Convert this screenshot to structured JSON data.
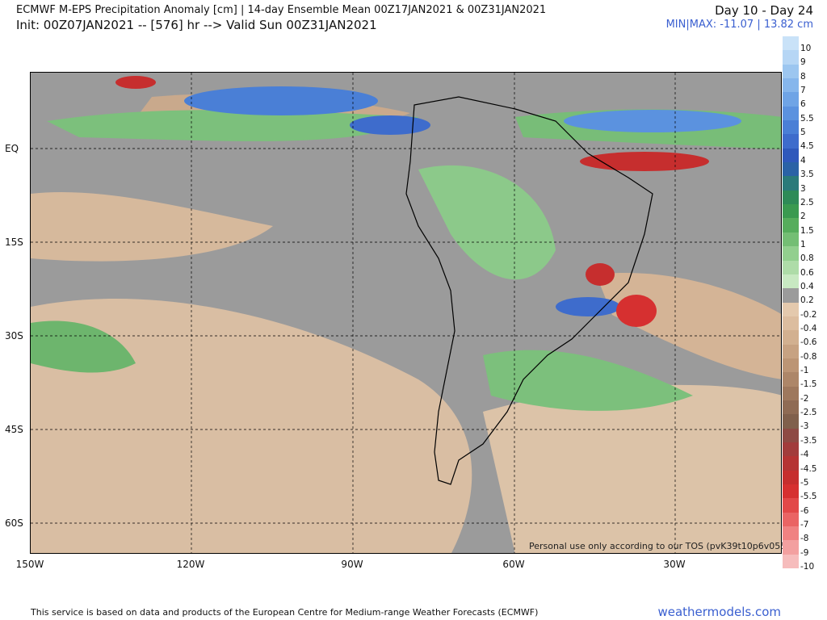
{
  "header": {
    "title": "ECMWF M-EPS Precipitation Anomaly [cm] | 14-day Ensemble Mean 00Z17JAN2021 & 00Z31JAN2021",
    "init": "Init: 00Z07JAN2021 -- [576] hr --> Valid Sun 00Z31JAN2021",
    "period": "Day 10 - Day 24",
    "minmax": "MIN|MAX: -11.07 | 13.82 cm"
  },
  "map": {
    "lat_labels": [
      "EQ",
      "15S",
      "30S",
      "45S",
      "60S"
    ],
    "lon_labels": [
      "150W",
      "120W",
      "90W",
      "60W",
      "30W"
    ],
    "tos_note": "Personal use only according to our TOS (pvK39t10p6v055)"
  },
  "colorbar": {
    "labels": [
      "10",
      "9",
      "8",
      "7",
      "6",
      "5.5",
      "5",
      "4.5",
      "4",
      "3.5",
      "3",
      "2.5",
      "2",
      "1.5",
      "1",
      "0.8",
      "0.6",
      "0.4",
      "0.2",
      "-0.2",
      "-0.4",
      "-0.6",
      "-0.8",
      "-1",
      "-1.5",
      "-2",
      "-2.5",
      "-3",
      "-3.5",
      "-4",
      "-4.5",
      "-5",
      "-5.5",
      "-6",
      "-7",
      "-8",
      "-9",
      "-10"
    ],
    "colors": [
      "#c9e2f8",
      "#b6d6f5",
      "#9cc6f0",
      "#86b6ec",
      "#6fa4e6",
      "#5b92df",
      "#4a7fd6",
      "#3e6ccc",
      "#2f58bb",
      "#2a62a6",
      "#2a7a7a",
      "#2e8b57",
      "#3a9a50",
      "#56ad5c",
      "#74be74",
      "#92cf8e",
      "#aedca8",
      "#c8e9c2",
      "#9b9b9b",
      "#e4c9ad",
      "#dcbd9f",
      "#d2b090",
      "#c7a282",
      "#bc9575",
      "#ad8668",
      "#9e785d",
      "#8f6b54",
      "#80604c",
      "#8e4a44",
      "#a23c3c",
      "#b53434",
      "#c62e2e",
      "#d63030",
      "#e24848",
      "#ea6464",
      "#f08282",
      "#f3a0a0",
      "#f6bcbc"
    ]
  },
  "footer": {
    "credit": "This service is based on data and products of the European Centre for Medium-range Weather Forecasts (ECMWF)",
    "brand": "weathermodels.com"
  }
}
